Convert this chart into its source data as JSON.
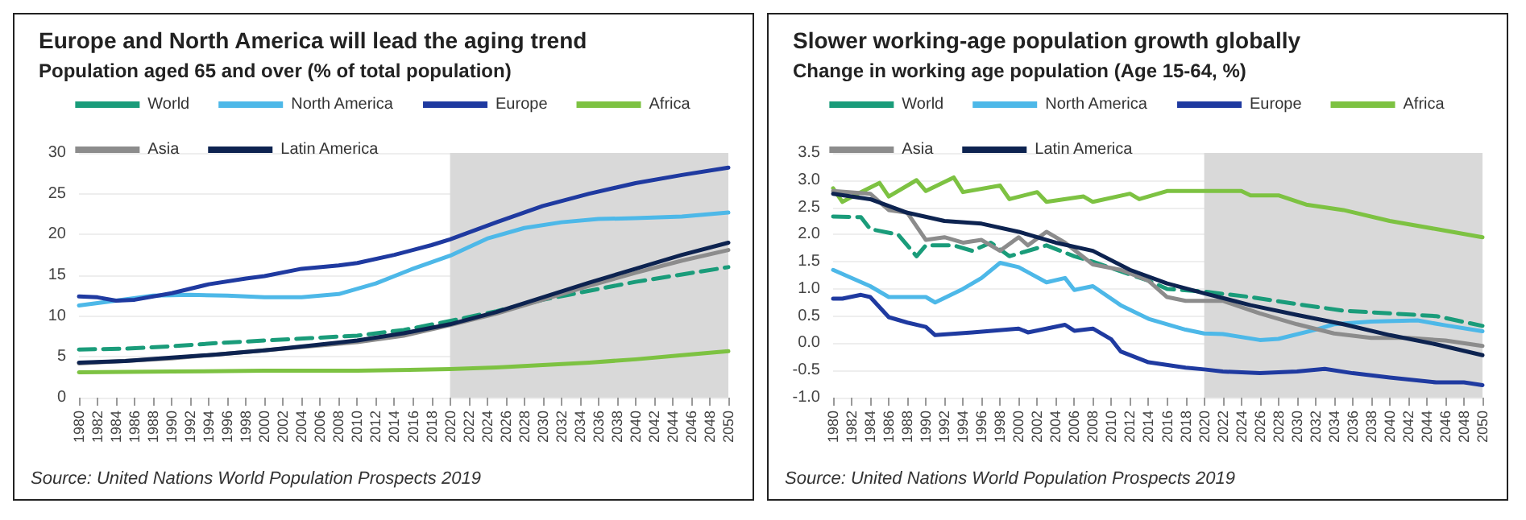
{
  "chart_data": [
    {
      "type": "line",
      "title": "Europe and North America will lead the aging trend",
      "subtitle": "Population aged 65 and over (% of total population)",
      "annotations": [
        "Source: United Nations World Population Prospects 2019"
      ],
      "legend": "top",
      "grid": "y",
      "marker": "none",
      "xlim": [
        1980,
        2050
      ],
      "xticks": [
        1980,
        1982,
        1984,
        1986,
        1988,
        1990,
        1992,
        1994,
        1996,
        1998,
        2000,
        2002,
        2004,
        2006,
        2008,
        2010,
        2012,
        2014,
        2016,
        2018,
        2020,
        2022,
        2024,
        2026,
        2028,
        2030,
        2032,
        2034,
        2036,
        2038,
        2040,
        2042,
        2044,
        2046,
        2048,
        2050
      ],
      "ylim": [
        0,
        30
      ],
      "yticks": [
        0,
        5,
        10,
        15,
        20,
        25,
        30
      ],
      "bands": [
        {
          "axis": "x",
          "from": 2020,
          "to": 2050,
          "color": "#d9d9d9"
        }
      ],
      "series": [
        {
          "name": "World",
          "color": "#1a9c7a",
          "line_style": "dashed",
          "x": [
            1980,
            1985,
            1990,
            1995,
            2000,
            2005,
            2010,
            2015,
            2020,
            2025,
            2030,
            2035,
            2040,
            2045,
            2050
          ],
          "values": [
            5.9,
            6.0,
            6.3,
            6.7,
            7.0,
            7.3,
            7.6,
            8.3,
            9.4,
            10.6,
            12.0,
            13.1,
            14.2,
            15.1,
            16.0
          ]
        },
        {
          "name": "North America",
          "color": "#4db8e8",
          "x": [
            1980,
            1984,
            1988,
            1992,
            1996,
            2000,
            2004,
            2008,
            2012,
            2016,
            2020,
            2024,
            2028,
            2032,
            2036,
            2040,
            2045,
            2050
          ],
          "values": [
            11.3,
            11.9,
            12.5,
            12.6,
            12.5,
            12.3,
            12.3,
            12.7,
            14.0,
            15.8,
            17.4,
            19.5,
            20.8,
            21.5,
            21.9,
            22.0,
            22.2,
            22.7
          ]
        },
        {
          "name": "Europe",
          "color": "#1f3aa0",
          "x": [
            1980,
            1982,
            1984,
            1986,
            1990,
            1994,
            1998,
            2000,
            2004,
            2008,
            2010,
            2014,
            2018,
            2020,
            2025,
            2030,
            2035,
            2040,
            2045,
            2050
          ],
          "values": [
            12.4,
            12.3,
            11.9,
            12.0,
            12.8,
            13.9,
            14.6,
            14.9,
            15.8,
            16.2,
            16.5,
            17.5,
            18.7,
            19.4,
            21.5,
            23.5,
            25.0,
            26.3,
            27.3,
            28.2
          ]
        },
        {
          "name": "Africa",
          "color": "#7dc242",
          "x": [
            1980,
            1990,
            2000,
            2010,
            2020,
            2025,
            2030,
            2035,
            2040,
            2045,
            2050
          ],
          "values": [
            3.1,
            3.2,
            3.3,
            3.3,
            3.5,
            3.7,
            4.0,
            4.3,
            4.7,
            5.2,
            5.7
          ]
        },
        {
          "name": "Asia",
          "color": "#8c8c8c",
          "x": [
            1980,
            1990,
            2000,
            2010,
            2015,
            2020,
            2025,
            2030,
            2035,
            2040,
            2045,
            2050
          ],
          "values": [
            4.2,
            4.8,
            5.8,
            6.8,
            7.6,
            8.9,
            10.3,
            12.0,
            13.7,
            15.3,
            16.8,
            18.1
          ]
        },
        {
          "name": "Latin America",
          "color": "#0d2350",
          "x": [
            1980,
            1985,
            1990,
            1995,
            2000,
            2005,
            2010,
            2015,
            2020,
            2025,
            2030,
            2035,
            2040,
            2045,
            2050
          ],
          "values": [
            4.3,
            4.5,
            4.9,
            5.3,
            5.8,
            6.4,
            7.0,
            7.9,
            9.0,
            10.5,
            12.3,
            14.1,
            15.8,
            17.5,
            19.0
          ]
        }
      ]
    },
    {
      "type": "line",
      "title": "Slower working-age population growth globally",
      "subtitle": "Change in working age population (Age 15-64, %)",
      "annotations": [
        "Source: United Nations World Population Prospects 2019"
      ],
      "legend": "top",
      "grid": "y",
      "marker": "none",
      "xlim": [
        1980,
        2050
      ],
      "xticks": [
        1980,
        1982,
        1984,
        1986,
        1988,
        1990,
        1992,
        1994,
        1996,
        1998,
        2000,
        2002,
        2004,
        2006,
        2008,
        2010,
        2012,
        2014,
        2016,
        2018,
        2020,
        2022,
        2024,
        2026,
        2028,
        2030,
        2032,
        2034,
        2036,
        2038,
        2040,
        2042,
        2044,
        2046,
        2048,
        2050
      ],
      "ylim": [
        -1,
        3.5
      ],
      "yticks": [
        {
          "value": -1,
          "label": "-1.0"
        },
        -0.5,
        {
          "value": 0,
          "label": "0.0"
        },
        0.5,
        {
          "value": 1,
          "label": "1.0"
        },
        1.5,
        {
          "value": 2,
          "label": "2.0"
        },
        2.5,
        {
          "value": 3,
          "label": "3.0"
        },
        3.5
      ],
      "bands": [
        {
          "axis": "x",
          "from": 2020,
          "to": 2050,
          "color": "#d9d9d9"
        }
      ],
      "series": [
        {
          "name": "World",
          "color": "#1a9c7a",
          "line_style": "dashed",
          "x": [
            1980,
            1983,
            1984,
            1987,
            1989,
            1990,
            1993,
            1995,
            1997,
            1999,
            2003,
            2006,
            2008,
            2014,
            2016,
            2020,
            2025,
            2030,
            2035,
            2040,
            2045,
            2050
          ],
          "values": [
            2.33,
            2.32,
            2.1,
            2.0,
            1.6,
            1.8,
            1.8,
            1.7,
            1.85,
            1.6,
            1.8,
            1.6,
            1.5,
            1.15,
            1.0,
            0.95,
            0.85,
            0.72,
            0.6,
            0.55,
            0.5,
            0.32
          ]
        },
        {
          "name": "North America",
          "color": "#4db8e8",
          "x": [
            1980,
            1984,
            1986,
            1990,
            1991,
            1994,
            1996,
            1998,
            2000,
            2003,
            2005,
            2006,
            2008,
            2011,
            2014,
            2018,
            2020,
            2022,
            2026,
            2028,
            2032,
            2034,
            2038,
            2043,
            2046,
            2050
          ],
          "values": [
            1.35,
            1.05,
            0.85,
            0.85,
            0.75,
            1.0,
            1.2,
            1.48,
            1.4,
            1.12,
            1.2,
            0.98,
            1.05,
            0.7,
            0.45,
            0.25,
            0.18,
            0.17,
            0.06,
            0.08,
            0.25,
            0.35,
            0.4,
            0.42,
            0.33,
            0.22
          ]
        },
        {
          "name": "Europe",
          "color": "#1f3aa0",
          "x": [
            1980,
            1981,
            1983,
            1984,
            1986,
            1988,
            1990,
            1991,
            1995,
            2000,
            2001,
            2005,
            2006,
            2008,
            2010,
            2011,
            2014,
            2018,
            2020,
            2022,
            2026,
            2030,
            2033,
            2036,
            2040,
            2045,
            2048,
            2050
          ],
          "values": [
            0.82,
            0.82,
            0.89,
            0.85,
            0.48,
            0.38,
            0.3,
            0.15,
            0.2,
            0.27,
            0.2,
            0.34,
            0.23,
            0.27,
            0.07,
            -0.15,
            -0.35,
            -0.45,
            -0.48,
            -0.52,
            -0.55,
            -0.52,
            -0.47,
            -0.55,
            -0.63,
            -0.72,
            -0.72,
            -0.77
          ]
        },
        {
          "name": "Africa",
          "color": "#7dc242",
          "x": [
            1980,
            1981,
            1983,
            1985,
            1986,
            1989,
            1990,
            1993,
            1994,
            1998,
            1999,
            2002,
            2003,
            2007,
            2008,
            2012,
            2013,
            2016,
            2020,
            2024,
            2025,
            2028,
            2031,
            2035,
            2040,
            2045,
            2050
          ],
          "values": [
            2.85,
            2.6,
            2.78,
            2.95,
            2.7,
            3.0,
            2.8,
            3.05,
            2.78,
            2.9,
            2.65,
            2.78,
            2.6,
            2.7,
            2.6,
            2.75,
            2.65,
            2.8,
            2.8,
            2.8,
            2.72,
            2.72,
            2.55,
            2.45,
            2.25,
            2.1,
            1.95
          ]
        },
        {
          "name": "Asia",
          "color": "#8c8c8c",
          "x": [
            1980,
            1984,
            1986,
            1988,
            1990,
            1992,
            1994,
            1996,
            1998,
            2000,
            2001,
            2003,
            2005,
            2008,
            2011,
            2014,
            2016,
            2018,
            2022,
            2026,
            2030,
            2034,
            2038,
            2042,
            2046,
            2050
          ],
          "values": [
            2.8,
            2.75,
            2.45,
            2.4,
            1.9,
            1.95,
            1.85,
            1.9,
            1.7,
            1.95,
            1.8,
            2.05,
            1.85,
            1.45,
            1.35,
            1.15,
            0.85,
            0.78,
            0.78,
            0.55,
            0.35,
            0.18,
            0.1,
            0.1,
            0.05,
            -0.05
          ]
        },
        {
          "name": "Latin America",
          "color": "#0d2350",
          "x": [
            1980,
            1984,
            1988,
            1992,
            1996,
            2000,
            2004,
            2008,
            2012,
            2016,
            2020,
            2025,
            2030,
            2035,
            2040,
            2045,
            2050
          ],
          "values": [
            2.75,
            2.65,
            2.4,
            2.25,
            2.2,
            2.05,
            1.85,
            1.7,
            1.35,
            1.1,
            0.92,
            0.7,
            0.52,
            0.35,
            0.15,
            -0.02,
            -0.22
          ]
        }
      ]
    }
  ]
}
